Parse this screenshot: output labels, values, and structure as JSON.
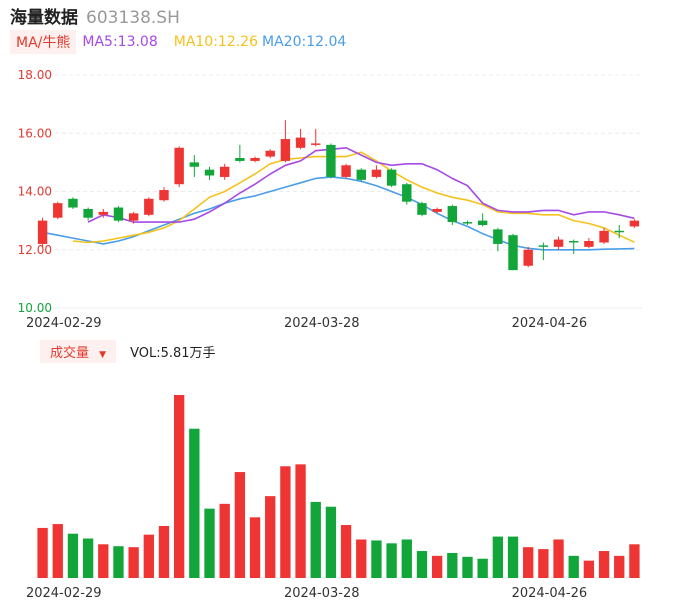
{
  "header": {
    "name": "海量数据",
    "code": "603138.SH"
  },
  "ma_bar": {
    "button_label": "MA/牛熊",
    "ma5_label": "MA5:13.08",
    "ma10_label": "MA10:12.26",
    "ma20_label": "MA20:12.04"
  },
  "volume_bar": {
    "button_label": "成交量",
    "vol_label": "VOL:5.81万手"
  },
  "colors": {
    "up": "#ef3434",
    "down": "#11a53a",
    "ma5": "#a54ae6",
    "ma10": "#f5c21b",
    "ma20": "#4a9de8",
    "price_tick": "#e23b30",
    "volume_tick": "#11a53a"
  },
  "chart_data": [
    {
      "type": "candlestick",
      "y_ticks": [
        "18.00",
        "16.00",
        "14.00",
        "12.00",
        "10.00"
      ],
      "ylim": [
        10,
        18
      ],
      "x_tick_labels": [
        {
          "label": "2024-02-29",
          "index": 1
        },
        {
          "label": "2024-03-28",
          "index": 18
        },
        {
          "label": "2024-04-26",
          "index": 33
        }
      ],
      "grid": true,
      "candles": [
        {
          "o": 12.2,
          "c": 13.0,
          "h": 13.1,
          "l": 12.1
        },
        {
          "o": 13.1,
          "c": 13.6,
          "h": 13.65,
          "l": 13.05
        },
        {
          "o": 13.75,
          "c": 13.45,
          "h": 13.8,
          "l": 13.4
        },
        {
          "o": 13.4,
          "c": 13.1,
          "h": 13.45,
          "l": 13.0
        },
        {
          "o": 13.2,
          "c": 13.3,
          "h": 13.4,
          "l": 13.1
        },
        {
          "o": 13.45,
          "c": 13.0,
          "h": 13.5,
          "l": 12.95
        },
        {
          "o": 13.0,
          "c": 13.25,
          "h": 13.3,
          "l": 12.9
        },
        {
          "o": 13.2,
          "c": 13.75,
          "h": 13.8,
          "l": 13.15
        },
        {
          "o": 13.7,
          "c": 14.05,
          "h": 14.15,
          "l": 13.65
        },
        {
          "o": 14.25,
          "c": 15.5,
          "h": 15.55,
          "l": 14.15
        },
        {
          "o": 15.0,
          "c": 14.85,
          "h": 15.25,
          "l": 14.5
        },
        {
          "o": 14.75,
          "c": 14.55,
          "h": 14.85,
          "l": 14.4
        },
        {
          "o": 14.5,
          "c": 14.85,
          "h": 14.95,
          "l": 14.4
        },
        {
          "o": 15.15,
          "c": 15.05,
          "h": 15.6,
          "l": 15.0
        },
        {
          "o": 15.05,
          "c": 15.15,
          "h": 15.2,
          "l": 15.0
        },
        {
          "o": 15.2,
          "c": 15.4,
          "h": 15.45,
          "l": 15.15
        },
        {
          "o": 15.05,
          "c": 15.8,
          "h": 16.45,
          "l": 15.0
        },
        {
          "o": 15.5,
          "c": 15.85,
          "h": 16.15,
          "l": 15.45
        },
        {
          "o": 15.6,
          "c": 15.65,
          "h": 16.15,
          "l": 15.55
        },
        {
          "o": 15.6,
          "c": 14.5,
          "h": 15.65,
          "l": 14.45
        },
        {
          "o": 14.5,
          "c": 14.9,
          "h": 14.95,
          "l": 14.45
        },
        {
          "o": 14.75,
          "c": 14.4,
          "h": 14.8,
          "l": 14.35
        },
        {
          "o": 14.5,
          "c": 14.75,
          "h": 14.9,
          "l": 14.45
        },
        {
          "o": 14.75,
          "c": 14.2,
          "h": 14.8,
          "l": 14.15
        },
        {
          "o": 14.25,
          "c": 13.65,
          "h": 14.3,
          "l": 13.55
        },
        {
          "o": 13.6,
          "c": 13.2,
          "h": 13.65,
          "l": 13.15
        },
        {
          "o": 13.3,
          "c": 13.4,
          "h": 13.45,
          "l": 13.25
        },
        {
          "o": 13.5,
          "c": 12.95,
          "h": 13.55,
          "l": 12.85
        },
        {
          "o": 12.95,
          "c": 12.9,
          "h": 13.0,
          "l": 12.85
        },
        {
          "o": 13.0,
          "c": 12.85,
          "h": 13.25,
          "l": 12.8
        },
        {
          "o": 12.7,
          "c": 12.2,
          "h": 12.75,
          "l": 11.95
        },
        {
          "o": 12.5,
          "c": 11.3,
          "h": 12.55,
          "l": 11.3
        },
        {
          "o": 11.45,
          "c": 12.0,
          "h": 12.1,
          "l": 11.4
        },
        {
          "o": 12.15,
          "c": 12.1,
          "h": 12.25,
          "l": 11.65
        },
        {
          "o": 12.1,
          "c": 12.35,
          "h": 12.45,
          "l": 12.0
        },
        {
          "o": 12.3,
          "c": 12.25,
          "h": 12.35,
          "l": 11.85
        },
        {
          "o": 12.1,
          "c": 12.3,
          "h": 12.4,
          "l": 12.05
        },
        {
          "o": 12.25,
          "c": 12.65,
          "h": 12.75,
          "l": 12.2
        },
        {
          "o": 12.65,
          "c": 12.6,
          "h": 12.85,
          "l": 12.4
        },
        {
          "o": 12.8,
          "c": 13.0,
          "h": 13.05,
          "l": 12.75
        }
      ],
      "ma5": [
        null,
        null,
        null,
        12.95,
        13.2,
        13.1,
        12.95,
        12.95,
        12.95,
        12.95,
        13.05,
        13.3,
        13.6,
        13.95,
        14.25,
        14.6,
        14.9,
        15.05,
        15.4,
        15.45,
        15.5,
        15.25,
        15.0,
        14.9,
        14.95,
        14.95,
        14.75,
        14.45,
        14.2,
        13.6,
        13.35,
        13.3,
        13.3,
        13.35,
        13.35,
        13.2,
        13.3,
        13.3,
        13.2,
        13.08
      ],
      "ma10": [
        null,
        null,
        12.3,
        12.25,
        12.3,
        12.4,
        12.5,
        12.6,
        12.75,
        13.0,
        13.4,
        13.8,
        14.0,
        14.3,
        14.6,
        14.95,
        15.1,
        15.15,
        15.2,
        15.2,
        15.2,
        15.35,
        15.05,
        14.7,
        14.4,
        14.15,
        13.95,
        13.8,
        13.7,
        13.55,
        13.3,
        13.25,
        13.25,
        13.2,
        13.2,
        13.0,
        12.9,
        12.75,
        12.5,
        12.26
      ],
      "ma20": [
        12.6,
        12.5,
        12.4,
        12.3,
        12.2,
        12.3,
        12.45,
        12.65,
        12.85,
        13.05,
        13.25,
        13.4,
        13.6,
        13.75,
        13.85,
        14.0,
        14.15,
        14.3,
        14.45,
        14.5,
        14.45,
        14.35,
        14.2,
        14.0,
        13.8,
        13.55,
        13.25,
        13.0,
        12.8,
        12.55,
        12.35,
        12.15,
        12.05,
        12.0,
        12.0,
        12.0,
        12.0,
        12.02,
        12.03,
        12.04
      ]
    },
    {
      "type": "bar",
      "title": "成交量",
      "x_tick_labels": [
        {
          "label": "2024-02-29",
          "index": 1
        },
        {
          "label": "2024-03-28",
          "index": 18
        },
        {
          "label": "2024-04-26",
          "index": 33
        }
      ],
      "ylim": [
        0,
        19
      ],
      "values": [
        5.2,
        5.6,
        4.6,
        4.1,
        3.5,
        3.3,
        3.2,
        4.5,
        5.4,
        19.0,
        15.5,
        7.2,
        7.7,
        11.0,
        6.3,
        8.5,
        11.6,
        11.8,
        7.9,
        7.4,
        5.5,
        4.0,
        3.9,
        3.6,
        4.0,
        2.8,
        2.3,
        2.6,
        2.2,
        2.0,
        4.3,
        4.3,
        3.2,
        3.0,
        4.0,
        2.3,
        1.8,
        2.8,
        2.3,
        3.5
      ],
      "directions": [
        "up",
        "up",
        "down",
        "down",
        "up",
        "down",
        "up",
        "up",
        "up",
        "up",
        "down",
        "down",
        "up",
        "up",
        "up",
        "up",
        "up",
        "up",
        "down",
        "down",
        "up",
        "up",
        "down",
        "down",
        "down",
        "down",
        "up",
        "down",
        "down",
        "down",
        "down",
        "down",
        "up",
        "up",
        "up",
        "down",
        "up",
        "up",
        "up",
        "up"
      ]
    }
  ]
}
